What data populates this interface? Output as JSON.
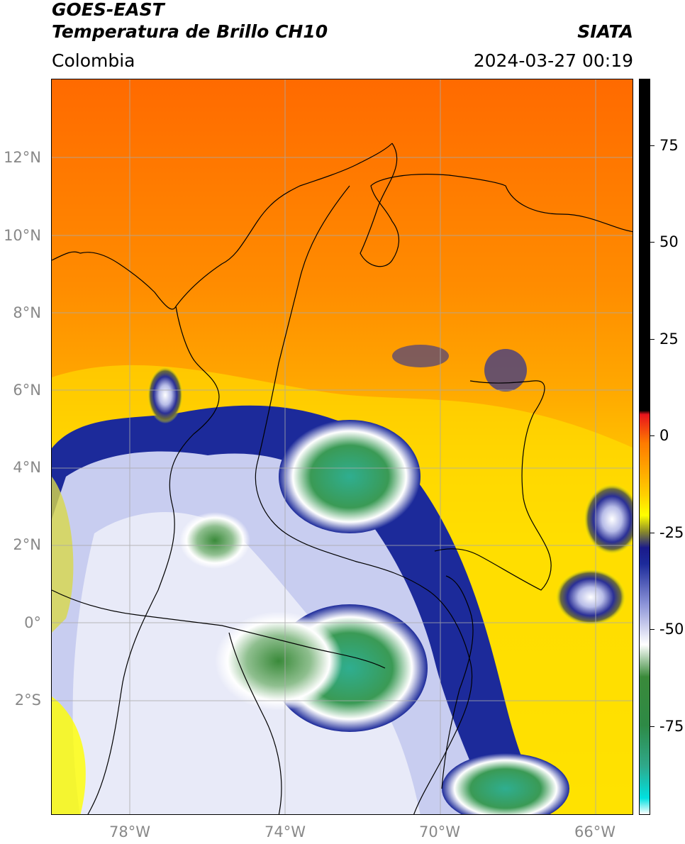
{
  "header": {
    "title_line1": "GOES-EAST",
    "title_line2": "Temperatura de Brillo CH10",
    "region": "Colombia",
    "organization": "SIATA",
    "timestamp": "2024-03-27 00:19"
  },
  "axes": {
    "lat_labels": [
      "12°N",
      "10°N",
      "8°N",
      "6°N",
      "4°N",
      "2°N",
      "0°",
      "2°S"
    ],
    "lon_labels": [
      "78°W",
      "74°W",
      "70°W",
      "66°W"
    ]
  },
  "colorbar": {
    "labels": [
      "75",
      "50",
      "25",
      "0",
      "-25",
      "-50",
      "-75"
    ],
    "stops": [
      {
        "value": 90,
        "color": "#000000"
      },
      {
        "value": 8,
        "color": "#000000"
      },
      {
        "value": 7,
        "color": "#e8141c"
      },
      {
        "value": 0,
        "color": "#ff7a00"
      },
      {
        "value": -13,
        "color": "#ffd000"
      },
      {
        "value": -18,
        "color": "#ffff00"
      },
      {
        "value": -22,
        "color": "#8a8a2a"
      },
      {
        "value": -26,
        "color": "#1a1a8a"
      },
      {
        "value": -30,
        "color": "#1c2a9a"
      },
      {
        "value": -40,
        "color": "#8c94d8"
      },
      {
        "value": -50,
        "color": "#ffffff"
      },
      {
        "value": -58,
        "color": "#3a8a3a"
      },
      {
        "value": -70,
        "color": "#2e8a46"
      },
      {
        "value": -80,
        "color": "#2fa88a"
      },
      {
        "value": -88,
        "color": "#00e0e0"
      },
      {
        "value": -92,
        "color": "#ffffff"
      }
    ]
  },
  "legend_colors": {
    "warm_orange": "#ff7a00",
    "yellow": "#ffff00",
    "deep_blue": "#1a1a8a",
    "green": "#2e8a46"
  }
}
